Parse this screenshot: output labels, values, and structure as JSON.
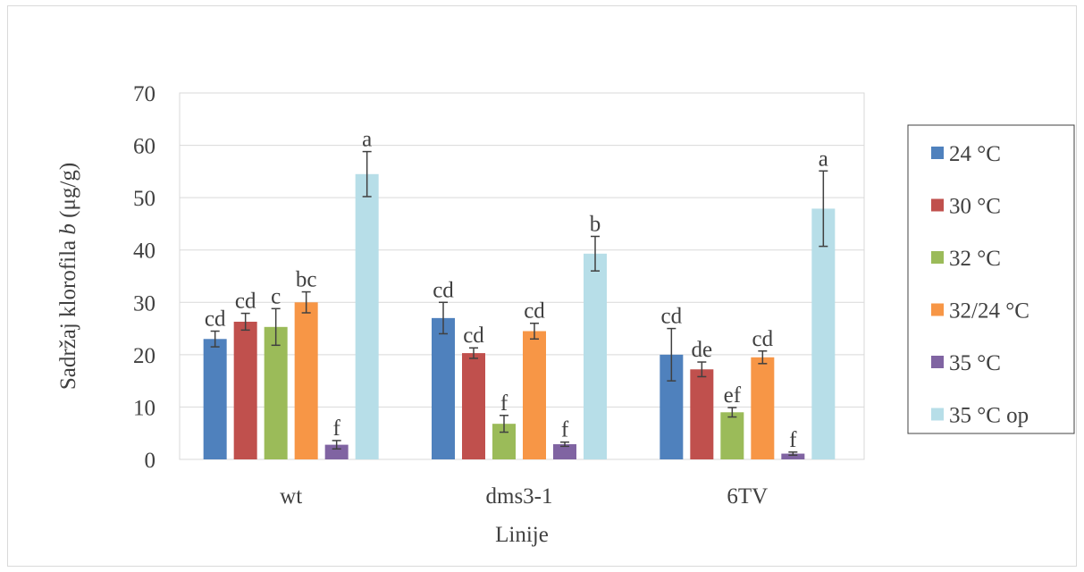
{
  "chart_data": {
    "type": "bar",
    "title": "",
    "xlabel": "Linije",
    "ylabel_prefix": "Sadržaj klorofila ",
    "ylabel_italic": "b",
    "ylabel_suffix": " (μg/g)",
    "ylim": [
      0,
      70
    ],
    "yticks": [
      0,
      10,
      20,
      30,
      40,
      50,
      60,
      70
    ],
    "grid": true,
    "legend_position": "right",
    "categories": [
      "wt",
      "dms3-1",
      "6TV"
    ],
    "series": [
      {
        "name": "24 °C",
        "color": "#4f81bd",
        "values": [
          23.0,
          27.0,
          20.0
        ],
        "errors": [
          1.5,
          3.0,
          5.0
        ],
        "labels": [
          "cd",
          "cd",
          "cd"
        ]
      },
      {
        "name": "30 °C",
        "color": "#c0504d",
        "values": [
          26.3,
          20.3,
          17.2
        ],
        "errors": [
          1.6,
          1.0,
          1.4
        ],
        "labels": [
          "cd",
          "cd",
          "de"
        ]
      },
      {
        "name": "32 °C",
        "color": "#9bbb59",
        "values": [
          25.3,
          6.8,
          9.0
        ],
        "errors": [
          3.5,
          1.6,
          0.9
        ],
        "labels": [
          "c",
          "f",
          "ef"
        ]
      },
      {
        "name": "32/24 °C",
        "color": "#f79646",
        "values": [
          30.0,
          24.5,
          19.5
        ],
        "errors": [
          2.0,
          1.5,
          1.2
        ],
        "labels": [
          "bc",
          "cd",
          "cd"
        ]
      },
      {
        "name": "35 °C",
        "color": "#8064a2",
        "values": [
          2.8,
          2.9,
          1.1
        ],
        "errors": [
          0.8,
          0.4,
          0.3
        ],
        "labels": [
          "f",
          "f",
          "f"
        ]
      },
      {
        "name": "35 °C op",
        "color": "#b7dee8",
        "values": [
          54.5,
          39.3,
          47.9
        ],
        "errors": [
          4.3,
          3.3,
          7.2
        ],
        "labels": [
          "a",
          "b",
          "a"
        ]
      }
    ]
  }
}
